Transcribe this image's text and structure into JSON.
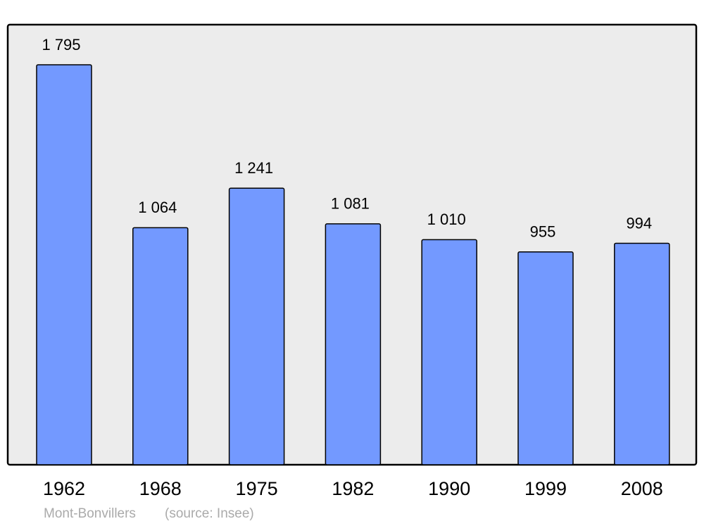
{
  "chart_data": {
    "type": "bar",
    "categories": [
      "1962",
      "1968",
      "1975",
      "1982",
      "1990",
      "1999",
      "2008"
    ],
    "values": [
      1795,
      1064,
      1241,
      1081,
      1010,
      955,
      994
    ],
    "value_labels": [
      "1 795",
      "1 064",
      "1 241",
      "1 081",
      "1 010",
      "955",
      "994"
    ],
    "color": "#7399ff",
    "place": "Mont-Bonvillers",
    "source": "(source: Insee)"
  }
}
